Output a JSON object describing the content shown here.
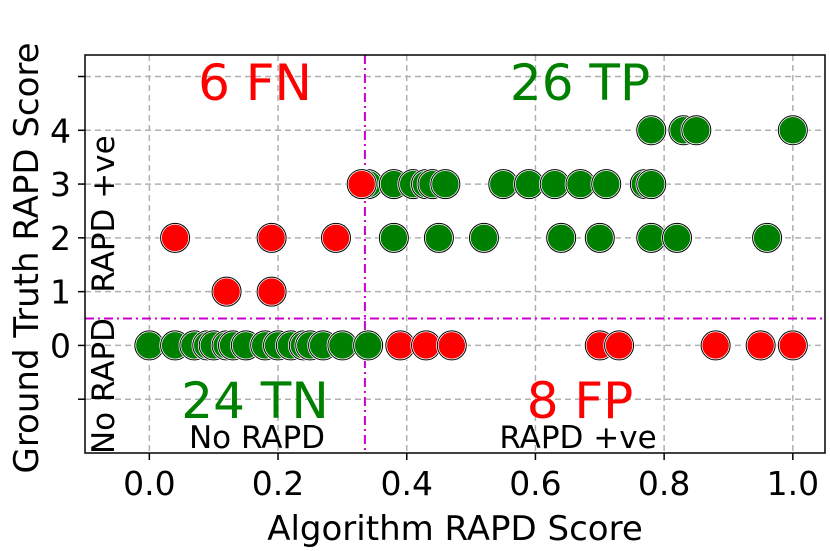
{
  "chart_data": {
    "type": "scatter",
    "xlabel": "Algorithm RAPD Score",
    "ylabel": "Ground Truth RAPD Score",
    "xlim": [
      -0.1,
      1.05
    ],
    "ylim": [
      -2.0,
      5.4
    ],
    "x_ticks": [
      0.0,
      0.2,
      0.4,
      0.6,
      0.8,
      1.0
    ],
    "x_tick_labels": [
      "0.0",
      "0.2",
      "0.4",
      "0.6",
      "0.8",
      "1.0"
    ],
    "y_ticks": [
      0,
      1,
      2,
      3,
      4
    ],
    "y_tick_labels": [
      "0",
      "1",
      "2",
      "3",
      "4"
    ],
    "y_gridlines": [
      -1,
      0,
      1,
      2,
      3,
      4,
      5
    ],
    "grid": true,
    "threshold_x": 0.335,
    "threshold_y": 0.5,
    "threshold_color": "#cc00cc",
    "colors": {
      "correct": "#008000",
      "incorrect": "#ff0000"
    },
    "quadrant_labels": {
      "fn": "6 FN",
      "tp": "26 TP",
      "tn": "24 TN",
      "fp": "8 FP"
    },
    "region_labels": {
      "left_bottom": "No RAPD",
      "right_bottom": "RAPD +ve",
      "left_vertical_upper": "RAPD +ve",
      "left_vertical_lower": "No RAPD"
    },
    "series": [
      {
        "color": "#008000",
        "points": [
          [
            0.0,
            0
          ],
          [
            0.04,
            0
          ],
          [
            0.07,
            0
          ],
          [
            0.09,
            0
          ],
          [
            0.1,
            0
          ],
          [
            0.12,
            0
          ],
          [
            0.13,
            0
          ],
          [
            0.15,
            0
          ],
          [
            0.18,
            0
          ],
          [
            0.2,
            0
          ],
          [
            0.22,
            0
          ],
          [
            0.24,
            0
          ],
          [
            0.25,
            0
          ],
          [
            0.27,
            0
          ],
          [
            0.3,
            0
          ],
          [
            0.34,
            0
          ],
          [
            0.34,
            3
          ],
          [
            0.38,
            3
          ],
          [
            0.41,
            3
          ],
          [
            0.43,
            3
          ],
          [
            0.44,
            3
          ],
          [
            0.46,
            3
          ],
          [
            0.55,
            3
          ],
          [
            0.59,
            3
          ],
          [
            0.63,
            3
          ],
          [
            0.67,
            3
          ],
          [
            0.71,
            3
          ],
          [
            0.77,
            3
          ],
          [
            0.78,
            3
          ],
          [
            0.38,
            2
          ],
          [
            0.45,
            2
          ],
          [
            0.52,
            2
          ],
          [
            0.64,
            2
          ],
          [
            0.7,
            2
          ],
          [
            0.78,
            2
          ],
          [
            0.82,
            2
          ],
          [
            0.96,
            2
          ],
          [
            0.78,
            4
          ],
          [
            0.83,
            4
          ],
          [
            0.85,
            4
          ],
          [
            1.0,
            4
          ]
        ]
      },
      {
        "color": "#ff0000",
        "points": [
          [
            0.04,
            2
          ],
          [
            0.19,
            2
          ],
          [
            0.29,
            2
          ],
          [
            0.12,
            1
          ],
          [
            0.19,
            1
          ],
          [
            0.33,
            3
          ],
          [
            0.39,
            0
          ],
          [
            0.43,
            0
          ],
          [
            0.47,
            0
          ],
          [
            0.7,
            0
          ],
          [
            0.73,
            0
          ],
          [
            0.88,
            0
          ],
          [
            0.95,
            0
          ],
          [
            1.0,
            0
          ]
        ]
      }
    ]
  }
}
